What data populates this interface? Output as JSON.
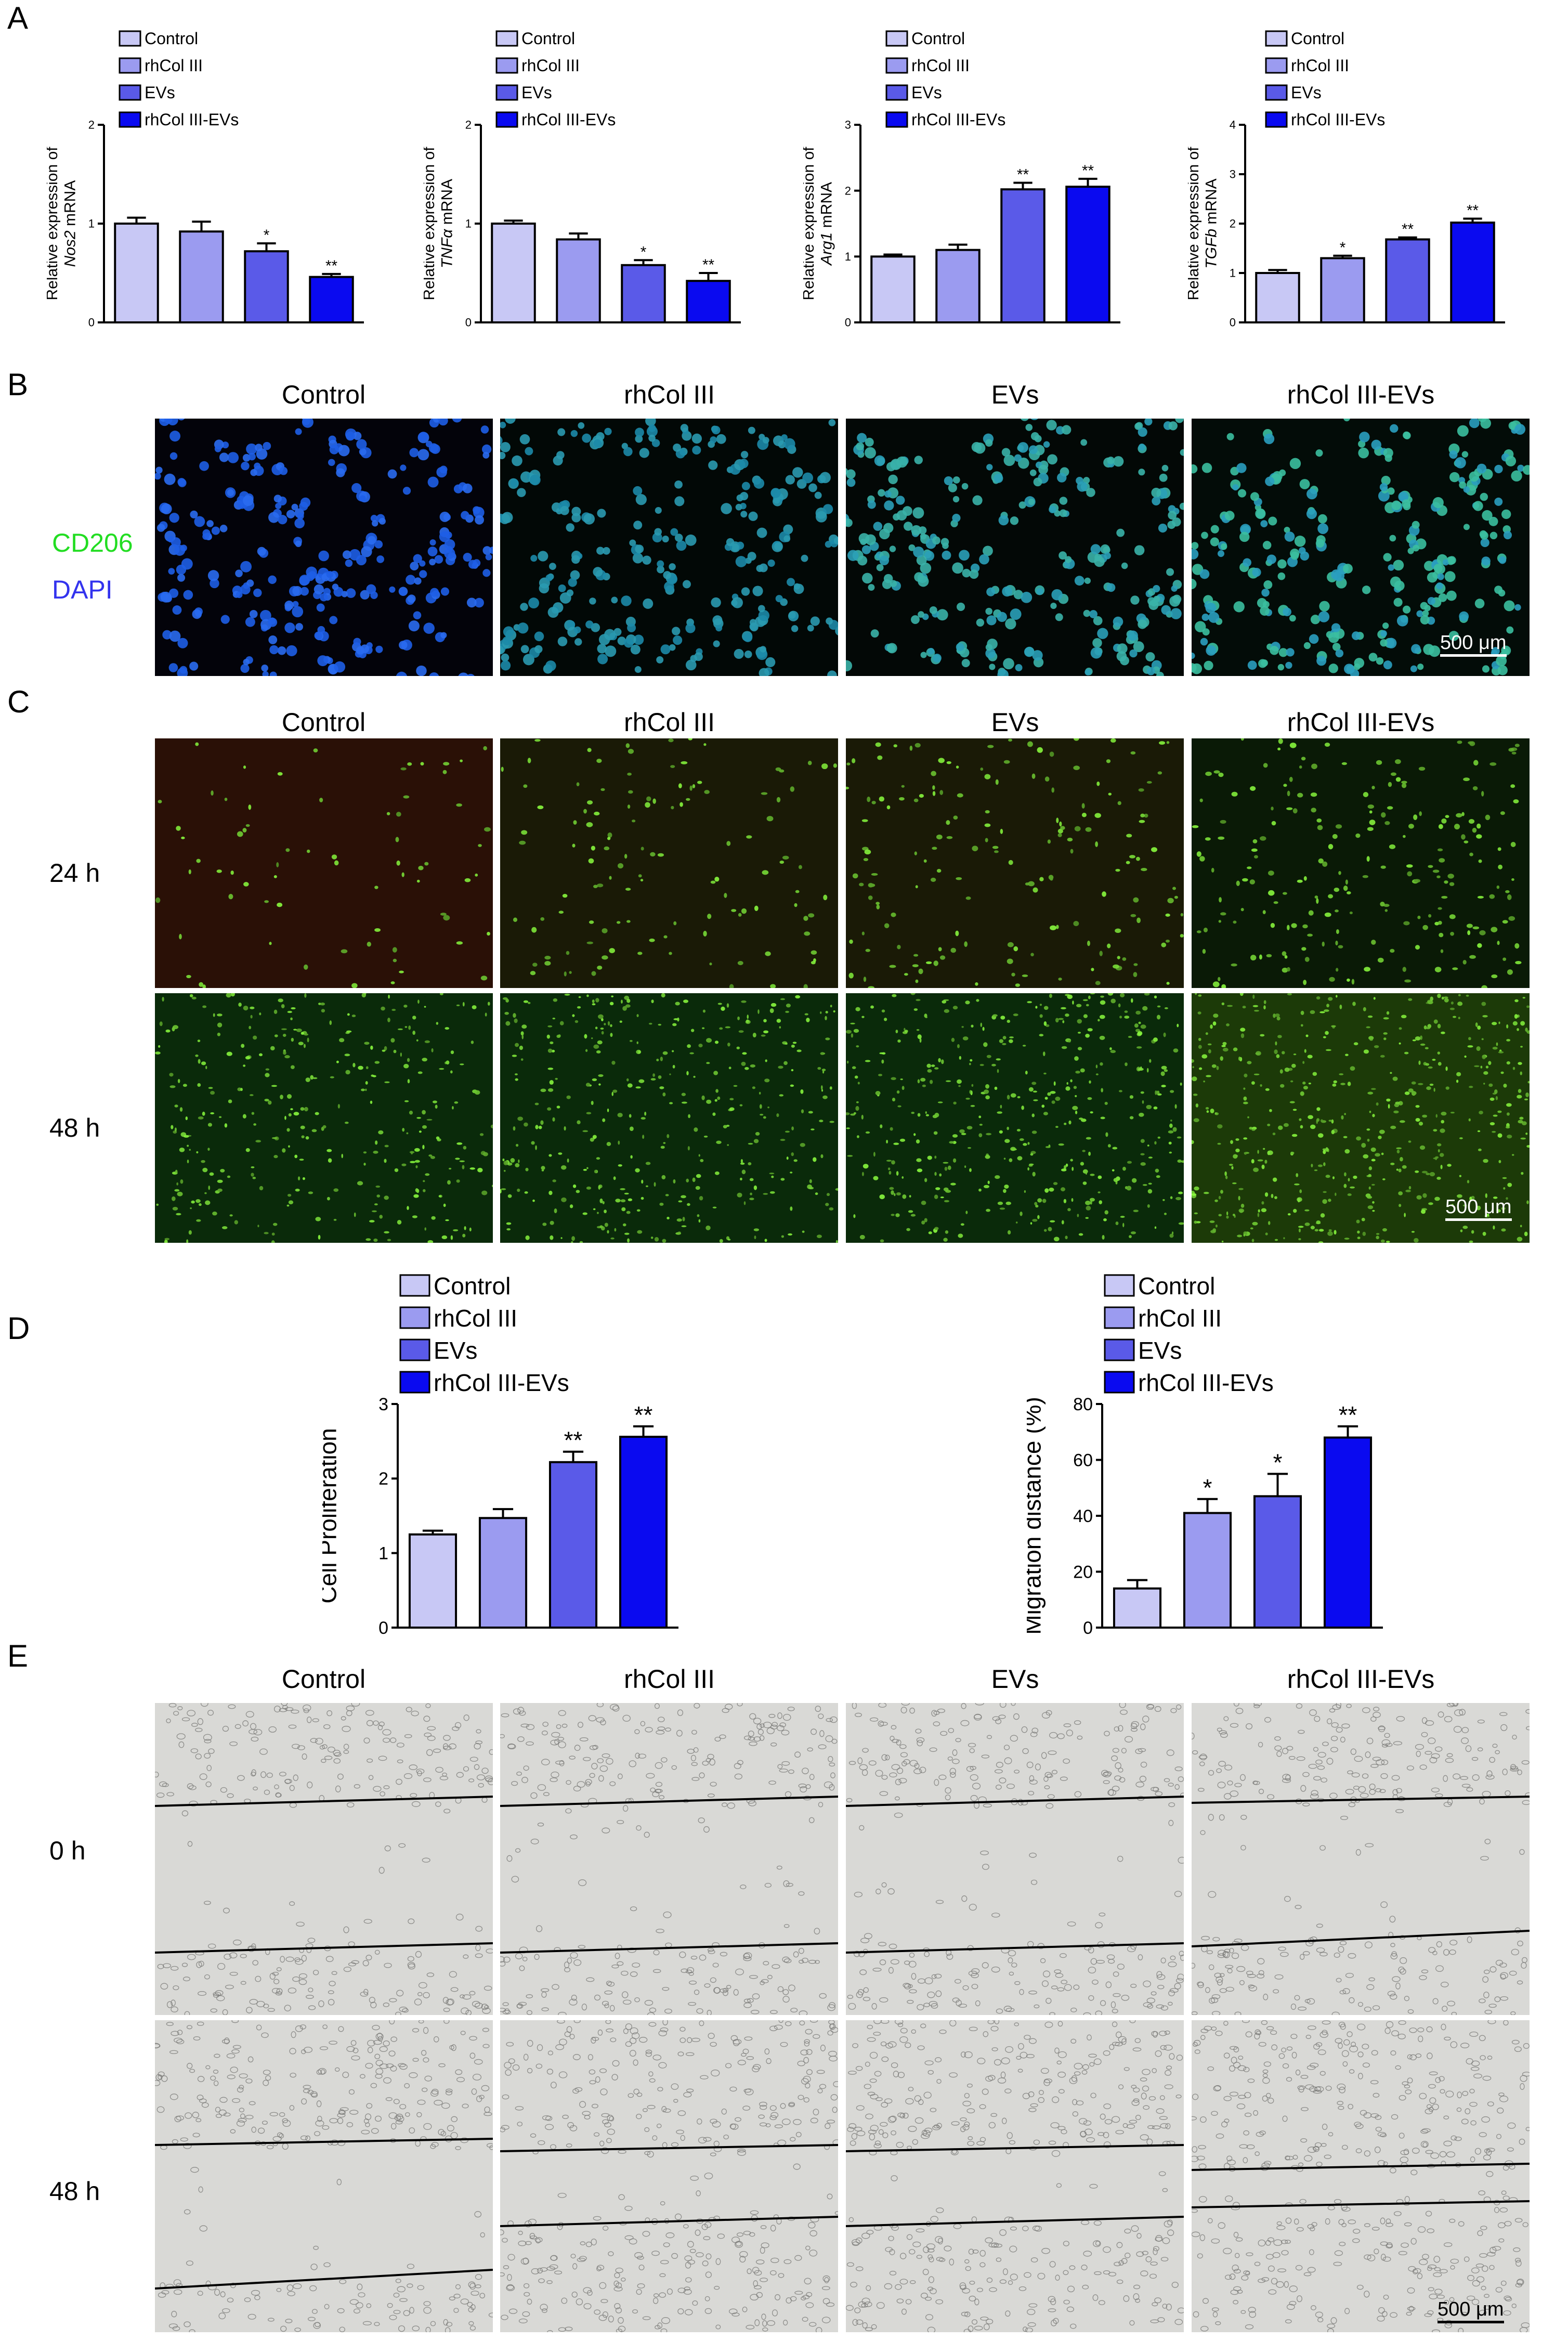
{
  "panels": {
    "A": "A",
    "B": "B",
    "C": "C",
    "D": "D",
    "E": "E"
  },
  "colors": {
    "Control": "#c8c8f5",
    "rhCol III": "#9b9bf0",
    "EVs": "#5a5ae8",
    "rhCol III-EVs": "#0a0af0"
  },
  "groups": [
    "Control",
    "rhCol III",
    "EVs",
    "rhCol III-EVs"
  ],
  "chart_data": [
    {
      "type": "bar",
      "panel": "A",
      "ylabel_pre": "Relative expression of",
      "ylabel_gene": "Nos2",
      "ylabel_post": " mRNA",
      "categories": [
        "Control",
        "rhCol III",
        "EVs",
        "rhCol III-EVs"
      ],
      "values": [
        1.0,
        0.92,
        0.72,
        0.46
      ],
      "errors": [
        0.06,
        0.1,
        0.08,
        0.03
      ],
      "sig": [
        "",
        "",
        "*",
        "**"
      ],
      "ylim": [
        0,
        2
      ],
      "yticks": [
        0,
        1,
        2
      ]
    },
    {
      "type": "bar",
      "panel": "A",
      "ylabel_pre": "Relative expression of",
      "ylabel_gene": "TNFα",
      "ylabel_post": " mRNA",
      "categories": [
        "Control",
        "rhCol III",
        "EVs",
        "rhCol III-EVs"
      ],
      "values": [
        1.0,
        0.84,
        0.58,
        0.42
      ],
      "errors": [
        0.03,
        0.06,
        0.05,
        0.08
      ],
      "sig": [
        "",
        "",
        "*",
        "**"
      ],
      "ylim": [
        0,
        2
      ],
      "yticks": [
        0,
        1,
        2
      ]
    },
    {
      "type": "bar",
      "panel": "A",
      "ylabel_pre": "Relative expression of",
      "ylabel_gene": "Arg1",
      "ylabel_post": " mRNA",
      "categories": [
        "Control",
        "rhCol III",
        "EVs",
        "rhCol III-EVs"
      ],
      "values": [
        1.0,
        1.1,
        2.02,
        2.06
      ],
      "errors": [
        0.03,
        0.08,
        0.1,
        0.12
      ],
      "sig": [
        "",
        "",
        "**",
        "**"
      ],
      "ylim": [
        0,
        3
      ],
      "yticks": [
        0,
        1,
        2,
        3
      ]
    },
    {
      "type": "bar",
      "panel": "A",
      "ylabel_pre": "Relative expression of",
      "ylabel_gene": "TGFb",
      "ylabel_post": " mRNA",
      "categories": [
        "Control",
        "rhCol III",
        "EVs",
        "rhCol III-EVs"
      ],
      "values": [
        1.0,
        1.3,
        1.68,
        2.02
      ],
      "errors": [
        0.06,
        0.05,
        0.04,
        0.08
      ],
      "sig": [
        "",
        "*",
        "**",
        "**"
      ],
      "ylim": [
        0,
        4
      ],
      "yticks": [
        0,
        1,
        2,
        3,
        4
      ]
    },
    {
      "type": "bar",
      "panel": "D",
      "ylabel": "Cell Proliferation",
      "categories": [
        "Control",
        "rhCol III",
        "EVs",
        "rhCol III-EVs"
      ],
      "values": [
        1.25,
        1.47,
        2.22,
        2.56
      ],
      "errors": [
        0.05,
        0.12,
        0.14,
        0.14
      ],
      "sig": [
        "",
        "",
        "**",
        "**"
      ],
      "ylim": [
        0,
        3
      ],
      "yticks": [
        0,
        1,
        2,
        3
      ]
    },
    {
      "type": "bar",
      "panel": "D",
      "ylabel": "Migration distance (%)",
      "categories": [
        "Control",
        "rhCol III",
        "EVs",
        "rhCol III-EVs"
      ],
      "values": [
        14,
        41,
        47,
        68
      ],
      "errors": [
        3,
        5,
        8,
        4
      ],
      "sig": [
        "",
        "*",
        "*",
        "**"
      ],
      "ylim": [
        0,
        80
      ],
      "yticks": [
        0,
        20,
        40,
        60,
        80
      ]
    }
  ],
  "panelB": {
    "stain1": "CD206",
    "stain2": "DAPI",
    "columns": [
      "Control",
      "rhCol III",
      "EVs",
      "rhCol III-EVs"
    ],
    "scalebar": "500 μm"
  },
  "panelC": {
    "columns": [
      "Control",
      "rhCol III",
      "EVs",
      "rhCol III-EVs"
    ],
    "rows": [
      "24 h",
      "48 h"
    ],
    "scalebar": "500 μm"
  },
  "panelE": {
    "columns": [
      "Control",
      "rhCol III",
      "EVs",
      "rhCol III-EVs"
    ],
    "rows": [
      "0 h",
      "48 h"
    ],
    "scalebar": "500 μm"
  }
}
